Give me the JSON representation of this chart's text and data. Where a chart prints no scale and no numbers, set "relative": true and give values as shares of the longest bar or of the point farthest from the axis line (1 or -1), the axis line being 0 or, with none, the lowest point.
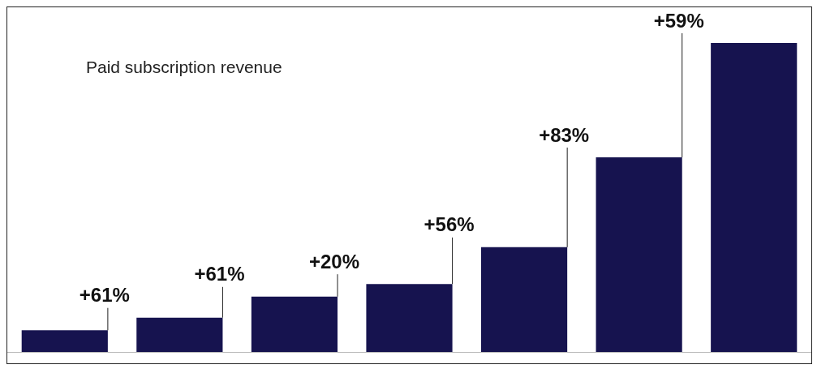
{
  "chart_data": {
    "type": "bar",
    "title": "Paid subscription revenue",
    "relative": true,
    "categories": [
      null,
      null,
      null,
      null,
      null,
      null,
      null
    ],
    "values": [
      0.07,
      0.111,
      0.179,
      0.22,
      0.339,
      0.63,
      1
    ],
    "color": "#16134f",
    "annotations": [
      "+61%",
      "+61%",
      "+20%",
      "+56%",
      "+83%",
      "+59%"
    ],
    "legend": false,
    "grid": false
  }
}
